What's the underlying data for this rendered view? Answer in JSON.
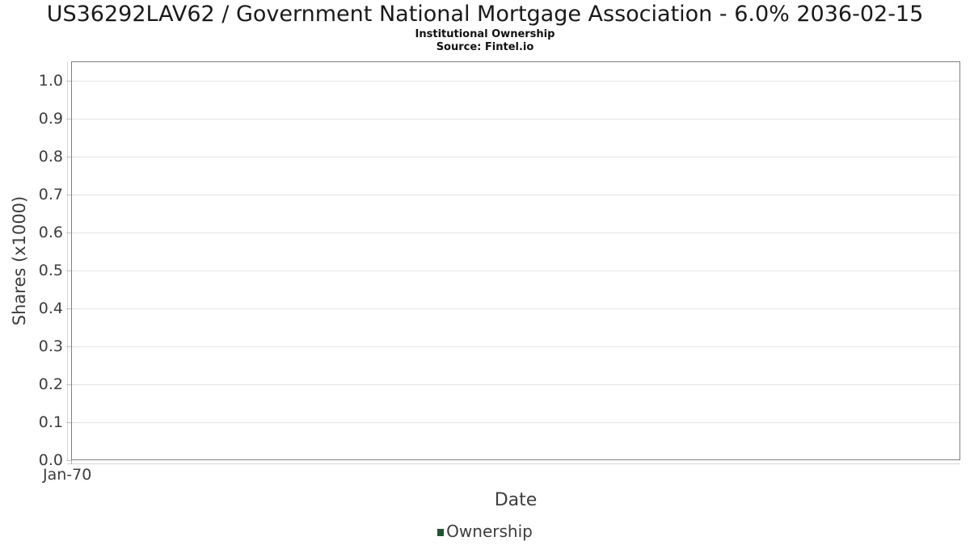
{
  "header": {
    "title": "US36292LAV62 / Government National Mortgage Association - 6.0% 2036-02-15",
    "subtitle": "Institutional Ownership",
    "source": "Source: Fintel.io"
  },
  "chart_data": {
    "type": "line",
    "title": "US36292LAV62 / Government National Mortgage Association - 6.0% 2036-02-15",
    "subtitle": "Institutional Ownership",
    "source_note": "Source: Fintel.io",
    "xlabel": "Date",
    "ylabel": "Shares (x1000)",
    "x_tick_labels": [
      "Jan-70"
    ],
    "y_ticks": [
      0.0,
      0.1,
      0.2,
      0.3,
      0.4,
      0.5,
      0.6,
      0.7,
      0.8,
      0.9,
      1.0
    ],
    "ylim": [
      0.0,
      1.05
    ],
    "grid": true,
    "legend": {
      "position": "bottom",
      "entries": [
        {
          "label": "Ownership",
          "color": "#1e5632"
        }
      ]
    },
    "series": [
      {
        "name": "Ownership",
        "color": "#1e5632",
        "points": []
      }
    ]
  },
  "colors": {
    "background": "#ffffff",
    "plot_border": "#7f7f7f",
    "gridline": "#e4e4e4",
    "tick_line": "#d6d6d6",
    "tick_mark": "#c4c4c4",
    "axis_text": "#3d3d3d",
    "title_text": "#1a1a1a",
    "legend_marker": "#1e5632"
  }
}
